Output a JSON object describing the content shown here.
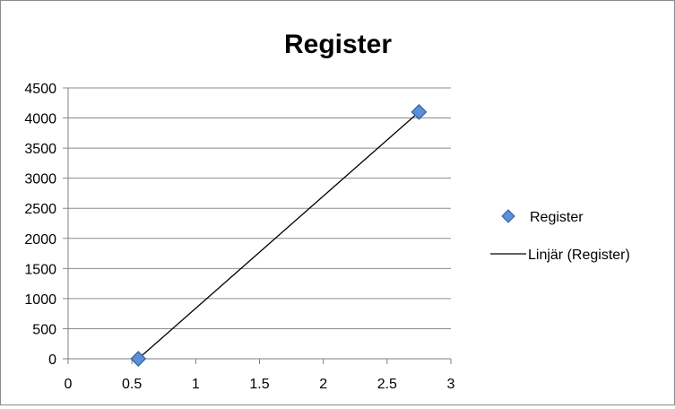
{
  "chart_data": {
    "type": "scatter",
    "title": "Register",
    "xlabel": "",
    "ylabel": "",
    "xlim": [
      0,
      3
    ],
    "ylim": [
      0,
      4500
    ],
    "x_ticks": [
      "0",
      "0.5",
      "1",
      "1.5",
      "2",
      "2.5",
      "3"
    ],
    "y_ticks": [
      "0",
      "500",
      "1000",
      "1500",
      "2000",
      "2500",
      "3000",
      "3500",
      "4000",
      "4500"
    ],
    "grid": "horizontal",
    "legend_position": "right",
    "series": [
      {
        "name": "Register",
        "kind": "markers",
        "marker": "diamond",
        "color": "#4f81bd",
        "x": [
          0.55,
          2.75
        ],
        "y": [
          0,
          4100
        ]
      },
      {
        "name": "Linjär (Register)",
        "kind": "trendline",
        "color": "#000000",
        "x": [
          0.55,
          2.75
        ],
        "y": [
          0,
          4100
        ]
      }
    ]
  }
}
